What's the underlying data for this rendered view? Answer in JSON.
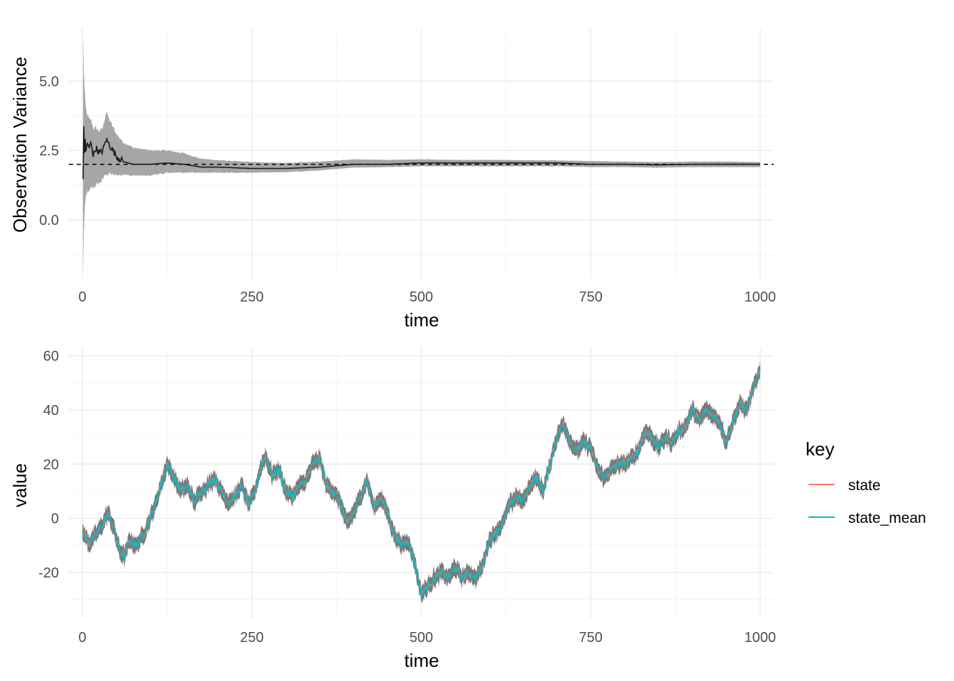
{
  "chart_data": [
    {
      "type": "line",
      "ylabel": "Observation Variance",
      "xlabel": "time",
      "xlim": [
        -20,
        1020
      ],
      "ylim": [
        -2.1,
        6.9
      ],
      "x_ticks": [
        0,
        250,
        500,
        750,
        1000
      ],
      "y_ticks": [
        0.0,
        2.5,
        5.0
      ],
      "y_tick_labels": [
        "0.0",
        "2.5",
        "5.0"
      ],
      "reference_line": {
        "y": 2.0,
        "style": "dashed"
      },
      "band_color": "#a6a6a6",
      "line_color": "#1a1a1a",
      "series": [
        {
          "x": [
            1,
            2,
            3,
            4,
            5,
            7,
            10,
            13,
            16,
            20,
            25,
            30,
            35,
            40,
            50,
            60,
            75,
            100,
            125,
            150,
            175,
            200,
            250,
            300,
            350,
            400,
            450,
            500,
            550,
            600,
            650,
            700,
            750,
            800,
            850,
            900,
            950,
            1000
          ],
          "mean": [
            1.5,
            3.3,
            2.4,
            2.9,
            2.5,
            2.7,
            2.6,
            2.8,
            2.3,
            2.6,
            2.4,
            2.5,
            2.9,
            2.7,
            2.3,
            2.1,
            2.0,
            2.0,
            2.05,
            2.0,
            1.9,
            1.9,
            1.85,
            1.85,
            1.9,
            2.0,
            2.0,
            2.05,
            2.05,
            2.05,
            2.05,
            2.05,
            2.0,
            2.0,
            1.98,
            2.0,
            2.0,
            2.0
          ],
          "lower": [
            -1.9,
            -0.6,
            0.2,
            0.7,
            0.9,
            1.0,
            1.1,
            1.2,
            1.1,
            1.3,
            1.3,
            1.5,
            1.6,
            1.7,
            1.6,
            1.6,
            1.6,
            1.6,
            1.7,
            1.7,
            1.7,
            1.7,
            1.7,
            1.72,
            1.78,
            1.88,
            1.9,
            1.93,
            1.93,
            1.93,
            1.93,
            1.93,
            1.9,
            1.9,
            1.88,
            1.9,
            1.9,
            1.9
          ],
          "upper": [
            6.6,
            5.5,
            4.8,
            4.3,
            4.0,
            3.8,
            3.6,
            3.6,
            3.3,
            3.3,
            3.2,
            3.3,
            3.9,
            3.6,
            3.1,
            2.8,
            2.6,
            2.5,
            2.5,
            2.4,
            2.2,
            2.15,
            2.08,
            2.05,
            2.1,
            2.18,
            2.16,
            2.18,
            2.16,
            2.16,
            2.15,
            2.14,
            2.12,
            2.1,
            2.08,
            2.1,
            2.1,
            2.08
          ]
        }
      ]
    },
    {
      "type": "line",
      "ylabel": "value",
      "xlabel": "time",
      "xlim": [
        -20,
        1020
      ],
      "ylim": [
        -37,
        63
      ],
      "x_ticks": [
        0,
        250,
        500,
        750,
        1000
      ],
      "y_ticks": [
        -20,
        0,
        20,
        40,
        60
      ],
      "legend": {
        "title": "key",
        "position": "right"
      },
      "band_color": "#7a7a7a",
      "x": [
        0,
        10,
        20,
        30,
        38,
        45,
        55,
        62,
        70,
        80,
        90,
        100,
        110,
        118,
        125,
        135,
        145,
        155,
        165,
        175,
        185,
        195,
        205,
        215,
        225,
        235,
        245,
        255,
        262,
        270,
        280,
        290,
        300,
        310,
        320,
        330,
        340,
        350,
        360,
        370,
        380,
        390,
        400,
        410,
        420,
        430,
        440,
        450,
        460,
        470,
        480,
        490,
        500,
        510,
        520,
        530,
        540,
        550,
        560,
        570,
        580,
        590,
        600,
        610,
        620,
        630,
        640,
        650,
        660,
        670,
        680,
        690,
        700,
        710,
        720,
        730,
        740,
        750,
        760,
        770,
        780,
        790,
        800,
        810,
        820,
        830,
        840,
        850,
        860,
        870,
        880,
        890,
        900,
        910,
        920,
        930,
        940,
        950,
        960,
        970,
        980,
        990,
        1000
      ],
      "series": [
        {
          "name": "state",
          "color": "#f8766d",
          "values": [
            -5,
            -9,
            -6,
            -2,
            2,
            -3,
            -12,
            -14,
            -8,
            -10,
            -6,
            0,
            7,
            14,
            20,
            15,
            10,
            12,
            6,
            10,
            12,
            15,
            10,
            6,
            8,
            12,
            5,
            10,
            18,
            23,
            16,
            18,
            10,
            8,
            12,
            14,
            20,
            22,
            12,
            10,
            6,
            -2,
            2,
            8,
            14,
            4,
            8,
            2,
            -6,
            -10,
            -8,
            -16,
            -28,
            -25,
            -22,
            -20,
            -22,
            -18,
            -22,
            -20,
            -22,
            -18,
            -8,
            -5,
            -2,
            5,
            8,
            6,
            12,
            15,
            10,
            20,
            30,
            35,
            28,
            25,
            28,
            26,
            18,
            15,
            18,
            20,
            20,
            22,
            25,
            32,
            30,
            26,
            30,
            28,
            32,
            34,
            40,
            36,
            40,
            38,
            36,
            28,
            36,
            42,
            40,
            48,
            54
          ]
        },
        {
          "name": "state_mean",
          "color": "#00bfc4",
          "values": [
            -5,
            -9,
            -6,
            -2,
            2,
            -3,
            -12,
            -14,
            -8,
            -10,
            -6,
            0,
            7,
            14,
            20,
            15,
            10,
            12,
            6,
            10,
            12,
            15,
            10,
            6,
            8,
            12,
            5,
            10,
            18,
            23,
            16,
            18,
            10,
            8,
            12,
            14,
            20,
            22,
            12,
            10,
            6,
            -2,
            2,
            8,
            14,
            4,
            8,
            2,
            -6,
            -10,
            -8,
            -16,
            -28,
            -25,
            -22,
            -20,
            -22,
            -18,
            -22,
            -20,
            -22,
            -18,
            -8,
            -5,
            -2,
            5,
            8,
            6,
            12,
            15,
            10,
            20,
            30,
            35,
            28,
            25,
            28,
            26,
            18,
            15,
            18,
            20,
            20,
            22,
            25,
            32,
            30,
            26,
            30,
            28,
            32,
            34,
            40,
            36,
            40,
            38,
            36,
            28,
            36,
            42,
            40,
            48,
            54
          ]
        }
      ]
    }
  ]
}
